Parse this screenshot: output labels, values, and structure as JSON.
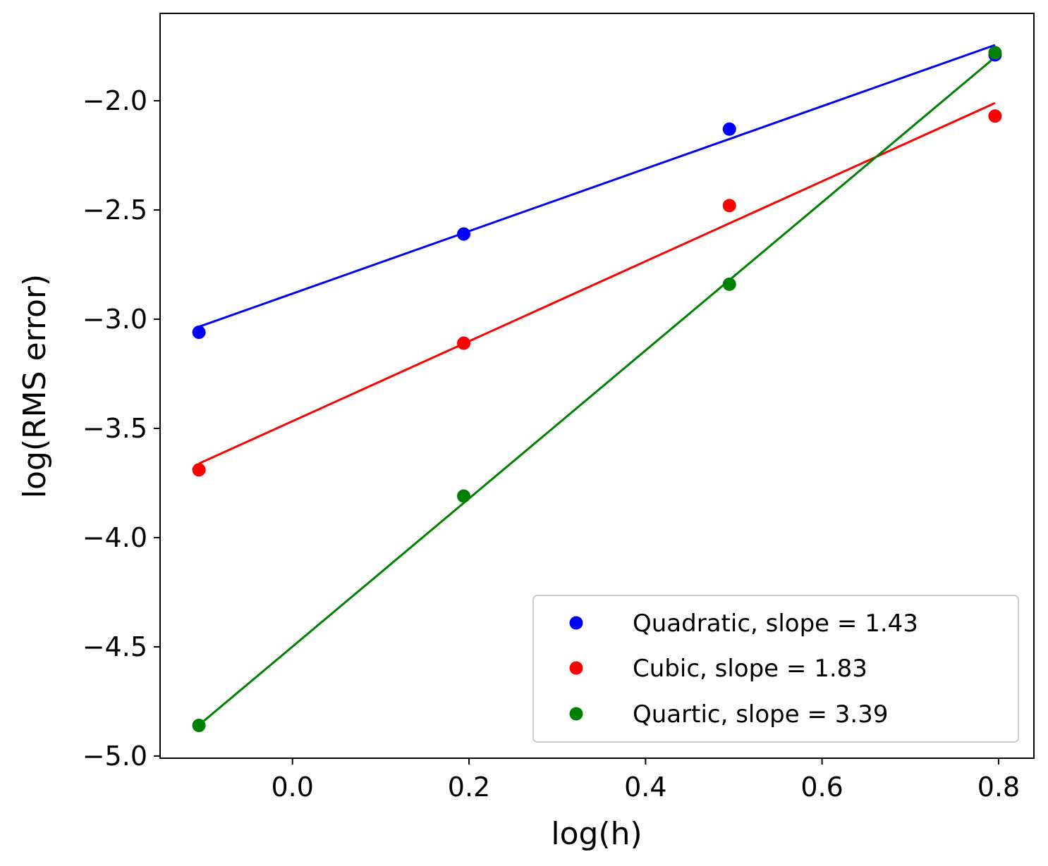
{
  "chart_data": {
    "type": "scatter",
    "title": "",
    "xlabel": "log(h)",
    "ylabel": "log(RMS error)",
    "xlim": [
      -0.15,
      0.84
    ],
    "ylim": [
      -5.01,
      -1.6
    ],
    "x_ticks": [
      0.0,
      0.2,
      0.4,
      0.6,
      0.8
    ],
    "x_tick_labels": [
      "0.0",
      "0.2",
      "0.4",
      "0.6",
      "0.8"
    ],
    "y_ticks": [
      -2.0,
      -2.5,
      -3.0,
      -3.5,
      -4.0,
      -4.5,
      -5.0
    ],
    "y_tick_labels": [
      "−2.0",
      "−2.5",
      "−3.0",
      "−3.5",
      "−4.0",
      "−4.5",
      "−5.0"
    ],
    "grid": false,
    "legend_position": "bottom-right",
    "x": [
      -0.106,
      0.194,
      0.495,
      0.796
    ],
    "series": [
      {
        "name": "Quadratic, slope = 1.43",
        "color": "#0000ff",
        "values": [
          -3.06,
          -2.61,
          -2.13,
          -1.79
        ],
        "fit_line": {
          "slope": 1.43,
          "intercept": -2.883
        }
      },
      {
        "name": "Cubic, slope = 1.83",
        "color": "#ff0000",
        "values": [
          -3.69,
          -3.11,
          -2.48,
          -2.07
        ],
        "fit_line": {
          "slope": 1.83,
          "intercept": -3.467
        }
      },
      {
        "name": "Quartic, slope = 3.39",
        "color": "#008000",
        "values": [
          -4.86,
          -3.81,
          -2.84,
          -1.78
        ],
        "fit_line": {
          "slope": 3.39,
          "intercept": -4.499
        }
      }
    ]
  }
}
